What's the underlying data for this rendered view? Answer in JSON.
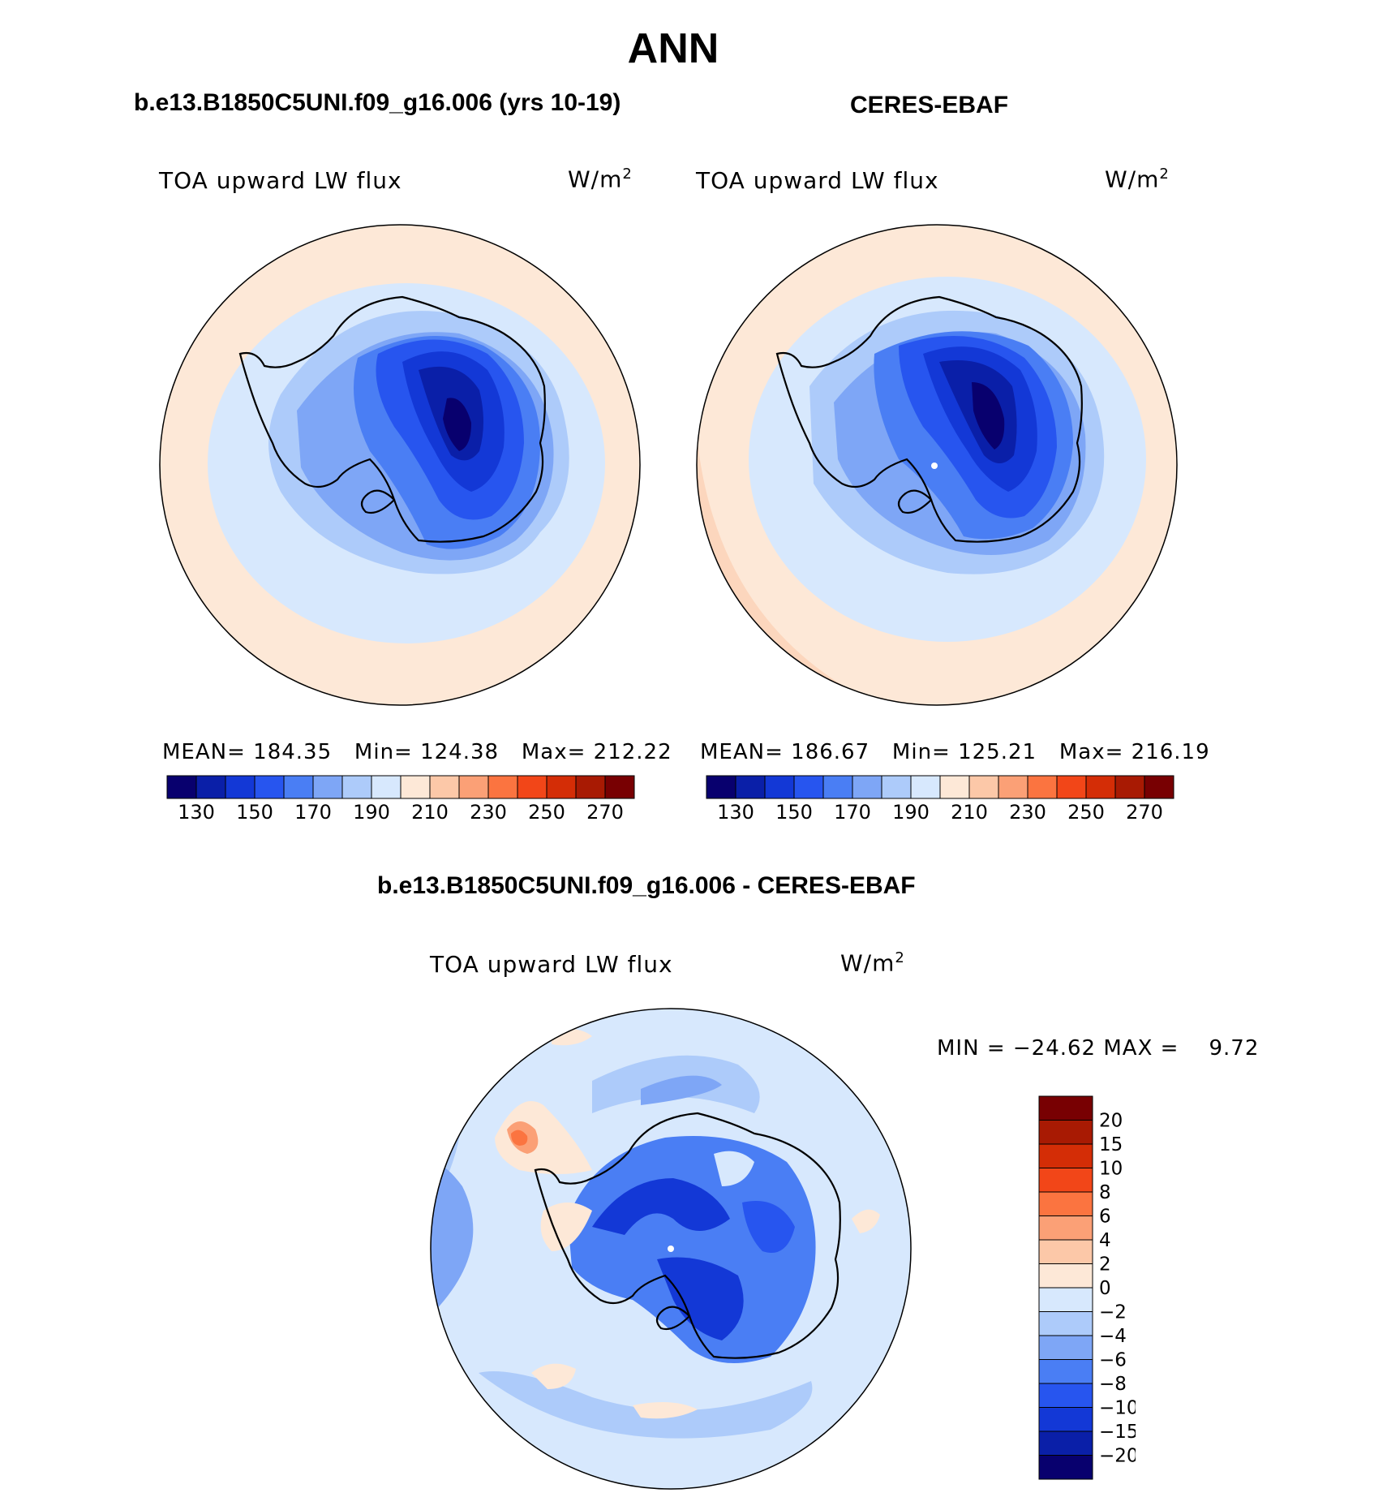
{
  "title": "ANN",
  "panels": {
    "model": {
      "case": "b.e13.B1850C5UNI.f09_g16.006 (yrs 10-19)",
      "variable": "TOA upward LW flux",
      "units": "W/m",
      "units_exp": "2",
      "stats": "MEAN= 184.35   Min= 124.38   Max= 212.22"
    },
    "obs": {
      "case": "CERES-EBAF",
      "variable": "TOA upward LW flux",
      "units": "W/m",
      "units_exp": "2",
      "stats": "MEAN= 186.67   Min= 125.21   Max= 216.19"
    },
    "diff": {
      "case": "b.e13.B1850C5UNI.f09_g16.006 - CERES-EBAF",
      "variable": "TOA upward LW flux",
      "units": "W/m",
      "units_exp": "2",
      "stats": "MIN = −24.62 MAX =    9.72"
    }
  },
  "colorbar_main": {
    "colors": [
      "#08006e",
      "#0a1fa8",
      "#1338d6",
      "#2755ef",
      "#4a7ef4",
      "#7ea6f6",
      "#adcbfa",
      "#d7e8fd",
      "#fde8d7",
      "#fcc8a8",
      "#fba076",
      "#fb7440",
      "#f24618",
      "#d42d06",
      "#a81a03",
      "#780002"
    ],
    "labels": [
      "130",
      "150",
      "170",
      "190",
      "210",
      "230",
      "250",
      "270"
    ]
  },
  "colorbar_diff": {
    "colors": [
      "#08006e",
      "#0a1fa8",
      "#1338d6",
      "#2755ef",
      "#4a7ef4",
      "#7ea6f6",
      "#adcbfa",
      "#d7e8fd",
      "#fde8d7",
      "#fcc8a8",
      "#fba076",
      "#fb7440",
      "#f24618",
      "#d42d06",
      "#a81a03",
      "#780002"
    ],
    "labels": [
      "20",
      "15",
      "10",
      "8",
      "6",
      "4",
      "2",
      "0",
      "−2",
      "−4",
      "−6",
      "−8",
      "−10",
      "−15",
      "−20"
    ]
  }
}
